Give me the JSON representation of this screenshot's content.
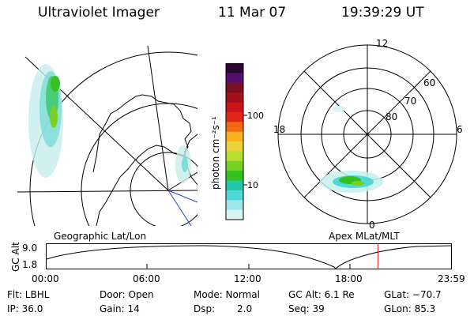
{
  "header": {
    "instrument": "Ultraviolet Imager",
    "date": "11 Mar 07",
    "time": "19:39:29 UT"
  },
  "colorbar": {
    "unit_label": "photon cm⁻²s⁻¹",
    "tick_100": "100",
    "tick_10": "10",
    "colors_top_to_bottom": [
      "#2a0530",
      "#55106e",
      "#7a1020",
      "#a5101a",
      "#c8141a",
      "#e2261a",
      "#f06a12",
      "#f7b21d",
      "#ecd23a",
      "#b8de2e",
      "#78d122",
      "#35c21e",
      "#22c7a6",
      "#4fd8d8",
      "#9ee8ea",
      "#d9f4f4"
    ]
  },
  "polar_plot": {
    "mlt_12": "12",
    "mlt_18": "18",
    "mlt_6": "6",
    "mlt_0": "0",
    "lat_60": "60",
    "lat_70": "70",
    "lat_80": "80"
  },
  "labels": {
    "geographic": "Geographic Lat/Lon",
    "apex": "Apex MLat/MLT"
  },
  "altitude_chart": {
    "axis_label": "GC Alt",
    "y_top": "9.0",
    "y_bottom": "1.8",
    "x_ticks": [
      "00:00",
      "06:00",
      "12:00",
      "18:00",
      "23:59"
    ],
    "current_time_marker_hours": 19.66,
    "marker_color": "#e02020"
  },
  "status": {
    "filter": "Flt: LBHL",
    "door": "Door: Open",
    "mode": "Mode: Normal",
    "gc_alt": "GC Alt: 6.1 Re",
    "glat": "GLat: −70.7",
    "ip": "IP: 36.0",
    "gain": "Gain: 14",
    "dsp_label": "Dsp:",
    "dsp_value": "2.0",
    "seq": "Seq: 39",
    "glon": "GLon: 85.3"
  }
}
